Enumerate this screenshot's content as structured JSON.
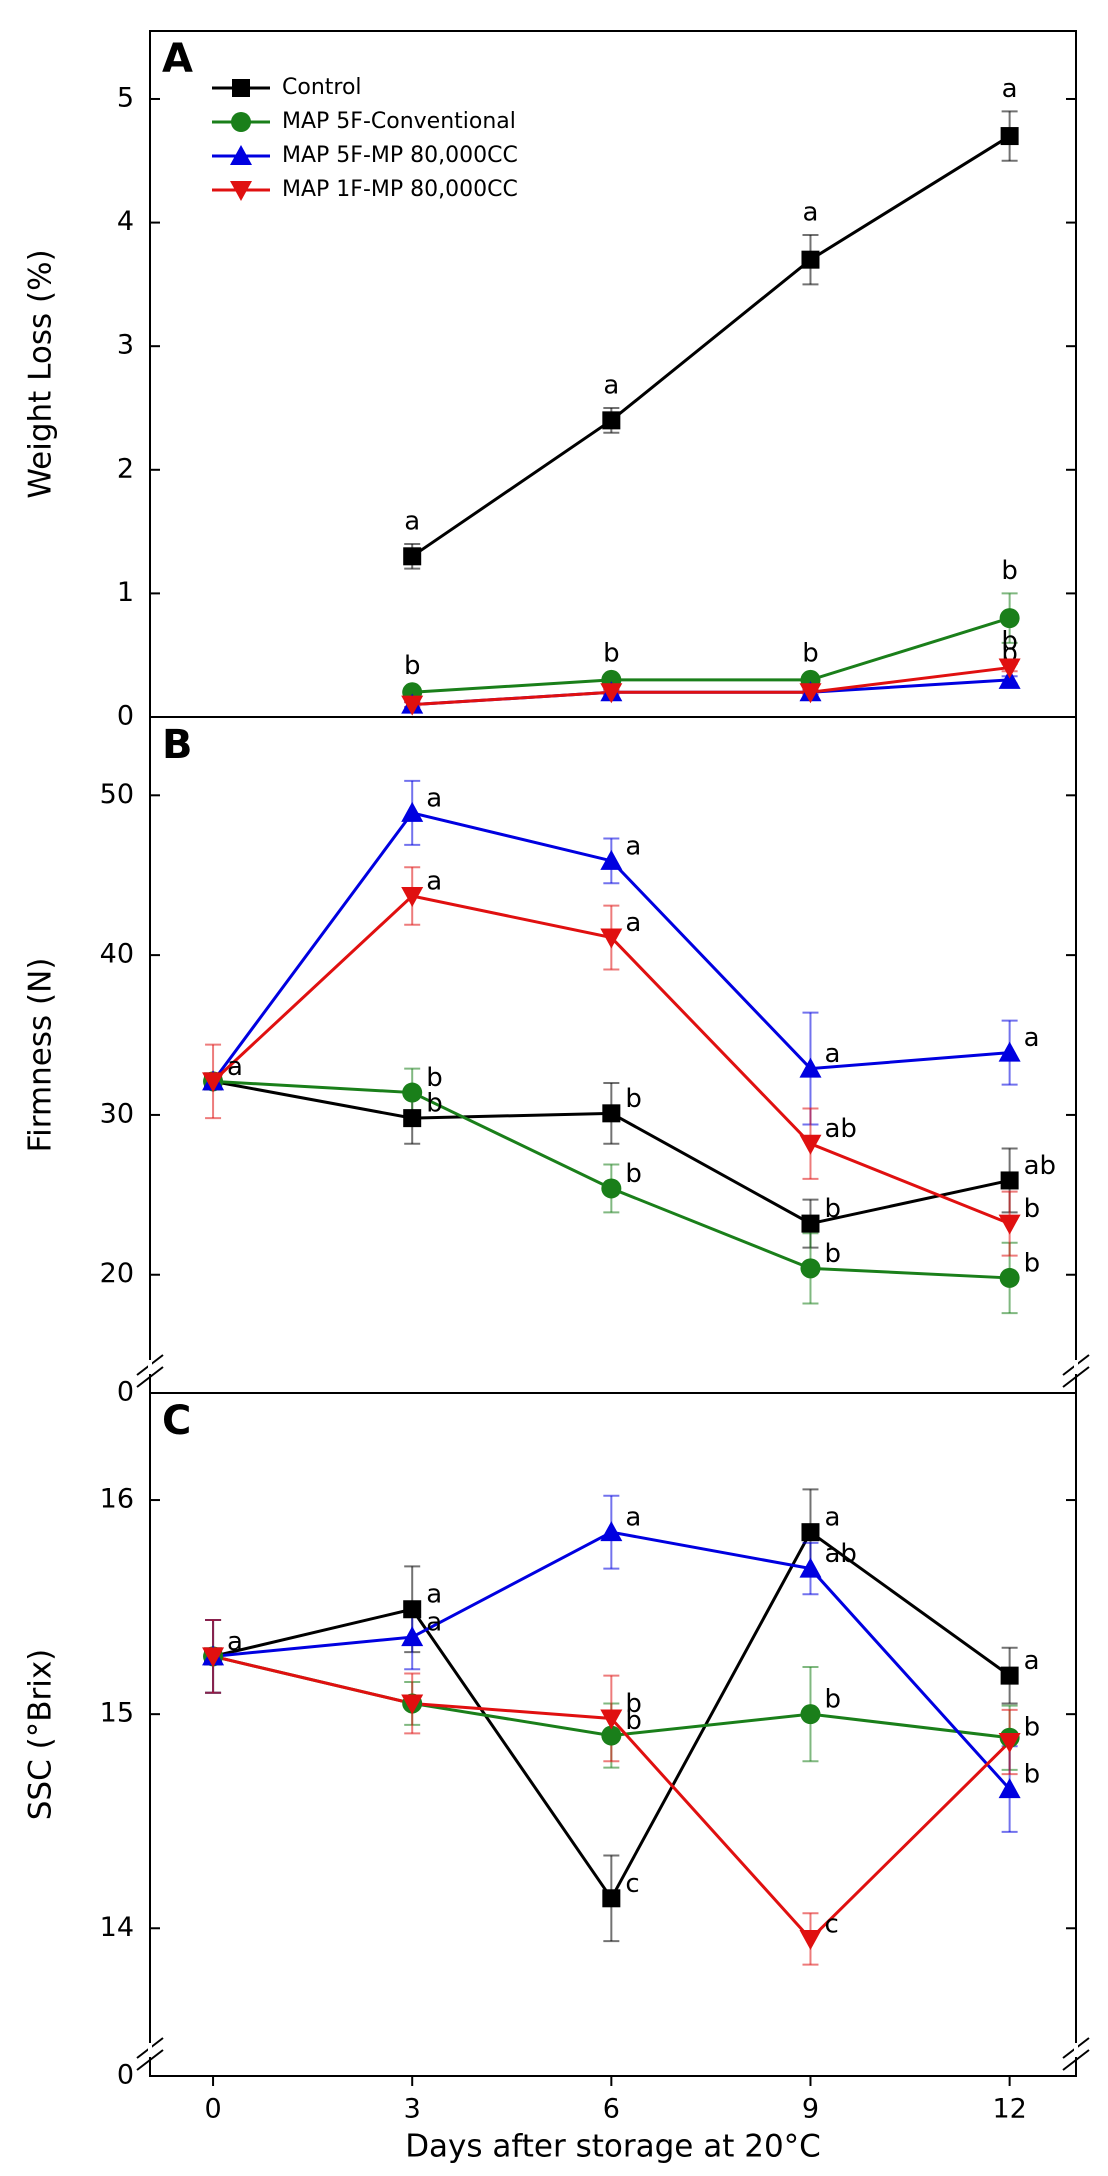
{
  "chart_data": [
    {
      "type": "line",
      "panel_label": "A",
      "ylabel": "Weight Loss (%)",
      "legend": "upper left",
      "x": [
        0,
        3,
        6,
        9,
        12
      ],
      "xlim": [
        -0.95,
        13
      ],
      "ylim": [
        0,
        5.55
      ],
      "yticks": [
        0,
        1,
        2,
        3,
        4,
        5
      ],
      "series": [
        {
          "name": "Control",
          "color": "#000000",
          "marker": "square",
          "values": [
            null,
            1.3,
            2.4,
            3.7,
            4.7
          ],
          "errors": [
            null,
            0.1,
            0.1,
            0.2,
            0.2
          ],
          "letters": [
            null,
            "a",
            "a",
            "a",
            "a"
          ]
        },
        {
          "name": "MAP 5F-Conventional",
          "color": "#1a7f1a",
          "marker": "circle",
          "values": [
            null,
            0.2,
            0.3,
            0.3,
            0.8
          ],
          "errors": [
            null,
            0.03,
            0.03,
            0.03,
            0.2
          ],
          "letters": [
            null,
            "b",
            "b",
            "b",
            "b"
          ]
        },
        {
          "name": "MAP 5F-MP 80,000CC",
          "color": "#0000e0",
          "marker": "triangle-up",
          "values": [
            null,
            0.1,
            0.2,
            0.2,
            0.3
          ],
          "errors": [
            null,
            0.02,
            0.02,
            0.02,
            0.03
          ],
          "letters": [
            null,
            null,
            null,
            null,
            "b"
          ]
        },
        {
          "name": "MAP 1F-MP 80,000CC",
          "color": "#e01010",
          "marker": "triangle-down",
          "values": [
            null,
            0.1,
            0.2,
            0.2,
            0.4
          ],
          "errors": [
            null,
            0.02,
            0.02,
            0.02,
            0.03
          ],
          "letters": [
            null,
            null,
            null,
            null,
            "b"
          ]
        }
      ]
    },
    {
      "type": "line",
      "panel_label": "B",
      "ylabel": "Firmness (N)",
      "axis_break_label": "0",
      "x": [
        0,
        3,
        6,
        9,
        12
      ],
      "xlim": [
        -0.95,
        13
      ],
      "ylim": [
        12.6,
        54.9
      ],
      "yticks": [
        20,
        30,
        40,
        50
      ],
      "series": [
        {
          "color": "#000000",
          "marker": "square",
          "values": [
            32.1,
            29.8,
            30.1,
            23.2,
            25.9
          ],
          "errors": [
            0.3,
            1.6,
            1.9,
            1.5,
            2.0
          ],
          "letters": [
            "a",
            "b",
            "b",
            "b",
            "ab"
          ]
        },
        {
          "color": "#1a7f1a",
          "marker": "circle",
          "values": [
            32.1,
            31.4,
            25.4,
            20.4,
            19.8
          ],
          "errors": [
            0.3,
            1.5,
            1.5,
            2.2,
            2.2
          ],
          "letters": [
            null,
            "b",
            "b",
            "b",
            "b"
          ]
        },
        {
          "color": "#0000e0",
          "marker": "triangle-up",
          "values": [
            32.1,
            48.9,
            45.9,
            32.9,
            33.9
          ],
          "errors": [
            0.3,
            2.0,
            1.4,
            3.5,
            2.0
          ],
          "letters": [
            null,
            "a",
            "a",
            "a",
            "a"
          ]
        },
        {
          "color": "#e01010",
          "marker": "triangle-down",
          "values": [
            32.1,
            43.7,
            41.1,
            28.2,
            23.2
          ],
          "errors": [
            2.3,
            1.8,
            2.0,
            2.2,
            2.0
          ],
          "letters": [
            null,
            "a",
            "a",
            "ab",
            "b"
          ]
        }
      ]
    },
    {
      "type": "line",
      "panel_label": "C",
      "ylabel": "SSC (°Brix)",
      "xlabel": "Days after storage at 20°C",
      "axis_break_label": "0",
      "x": [
        0,
        3,
        6,
        9,
        12
      ],
      "xlim": [
        -0.95,
        13
      ],
      "xticks": [
        0,
        3,
        6,
        9,
        12
      ],
      "ylim": [
        13.31,
        16.5
      ],
      "yticks": [
        14,
        15,
        16
      ],
      "series": [
        {
          "color": "#000000",
          "marker": "square",
          "values": [
            15.27,
            15.49,
            14.14,
            15.85,
            15.18
          ],
          "errors": [
            0.17,
            0.2,
            0.2,
            0.2,
            0.13
          ],
          "letters": [
            "a",
            "a",
            "c",
            "a",
            "a"
          ]
        },
        {
          "color": "#1a7f1a",
          "marker": "circle",
          "values": [
            15.27,
            15.05,
            14.9,
            15.0,
            14.89
          ],
          "errors": [
            0.17,
            0.1,
            0.15,
            0.22,
            0.15
          ],
          "letters": [
            null,
            null,
            "b",
            "b",
            null
          ]
        },
        {
          "color": "#0000e0",
          "marker": "triangle-up",
          "values": [
            15.27,
            15.36,
            15.85,
            15.68,
            14.65
          ],
          "errors": [
            0.17,
            0.15,
            0.17,
            0.12,
            0.2
          ],
          "letters": [
            null,
            "a",
            "a",
            "ab",
            "b"
          ]
        },
        {
          "color": "#e01010",
          "marker": "triangle-down",
          "values": [
            15.27,
            15.05,
            14.98,
            13.95,
            14.87
          ],
          "errors": [
            0.17,
            0.14,
            0.2,
            0.12,
            0.15
          ],
          "letters": [
            null,
            null,
            "b",
            "c",
            "b"
          ]
        }
      ]
    }
  ]
}
